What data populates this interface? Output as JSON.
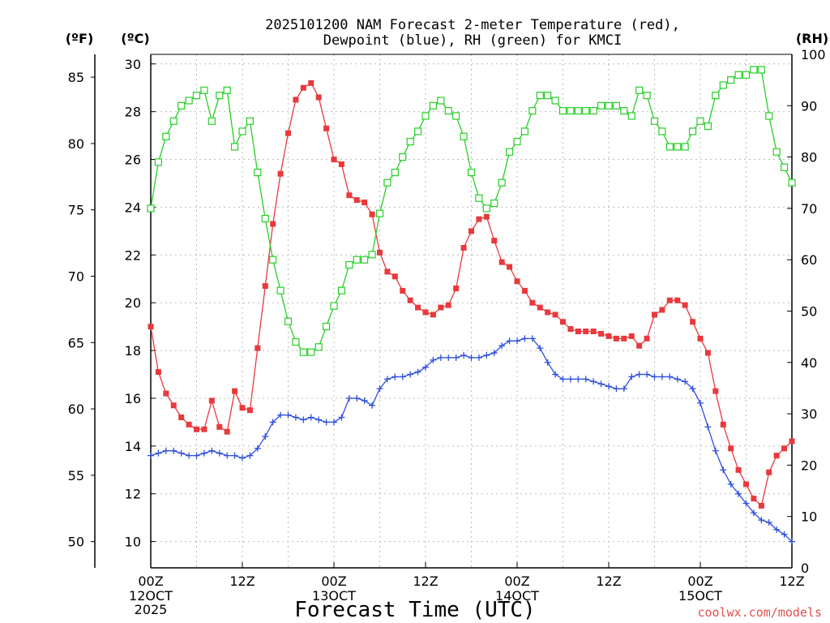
{
  "chart_data": {
    "type": "line",
    "title_line1": "2025101200 NAM Forecast 2-meter Temperature (red),",
    "title_line2": "Dewpoint (blue), RH (green) for KMCI",
    "xlabel": "Forecast Time (UTC)",
    "credit": "coolwx.com/models",
    "y_left_f_label": "(ºF)",
    "y_left_c_label": "(ºC)",
    "y_right_label": "(RH)",
    "x_tick_labels": [
      {
        "hour": 0,
        "line1": "00Z",
        "line2": "12OCT",
        "line3": "2025"
      },
      {
        "hour": 12,
        "line1": "12Z",
        "line2": "",
        "line3": ""
      },
      {
        "hour": 24,
        "line1": "00Z",
        "line2": "13OCT",
        "line3": ""
      },
      {
        "hour": 36,
        "line1": "12Z",
        "line2": "",
        "line3": ""
      },
      {
        "hour": 48,
        "line1": "00Z",
        "line2": "14OCT",
        "line3": ""
      },
      {
        "hour": 60,
        "line1": "12Z",
        "line2": "",
        "line3": ""
      },
      {
        "hour": 72,
        "line1": "00Z",
        "line2": "15OCT",
        "line3": ""
      },
      {
        "hour": 84,
        "line1": "12Z",
        "line2": "",
        "line3": ""
      }
    ],
    "x_range_hours": [
      0,
      84
    ],
    "y_c_range": [
      8.9,
      30.4
    ],
    "y_c_ticks": [
      "10",
      "12",
      "14",
      "16",
      "18",
      "20",
      "22",
      "24",
      "26",
      "28",
      "30"
    ],
    "y_f_ticks": [
      "50",
      "55",
      "60",
      "65",
      "70",
      "75",
      "80",
      "85"
    ],
    "y_rh_range": [
      0,
      100
    ],
    "y_rh_ticks": [
      "0",
      "10",
      "20",
      "30",
      "40",
      "50",
      "60",
      "70",
      "80",
      "90",
      "100"
    ],
    "grid": true,
    "colors": {
      "temperature": "#e8393d",
      "dewpoint": "#2f4fdc",
      "rh": "#26cf26",
      "credit": "#e05050",
      "grid": "#bbbbbb"
    },
    "x_hours": [
      0,
      1,
      2,
      3,
      4,
      5,
      6,
      7,
      8,
      9,
      10,
      11,
      12,
      13,
      14,
      15,
      16,
      17,
      18,
      19,
      20,
      21,
      22,
      23,
      24,
      25,
      26,
      27,
      28,
      29,
      30,
      31,
      32,
      33,
      34,
      35,
      36,
      37,
      38,
      39,
      40,
      41,
      42,
      43,
      44,
      45,
      46,
      47,
      48,
      49,
      50,
      51,
      52,
      53,
      54,
      55,
      56,
      57,
      58,
      59,
      60,
      61,
      62,
      63,
      64,
      65,
      66,
      67,
      68,
      69,
      70,
      71,
      72,
      73,
      74,
      75,
      76,
      77,
      78,
      79,
      80,
      81,
      82,
      83,
      84
    ],
    "series": [
      {
        "key": "temperature",
        "unit": "C",
        "marker": "filled-square",
        "values": [
          19.0,
          17.1,
          16.2,
          15.7,
          15.2,
          14.9,
          14.7,
          14.7,
          15.9,
          14.8,
          14.6,
          16.3,
          15.6,
          15.5,
          18.1,
          20.7,
          23.3,
          25.4,
          27.1,
          28.5,
          29.0,
          29.2,
          28.6,
          27.3,
          26.0,
          25.8,
          24.5,
          24.3,
          24.2,
          23.7,
          22.1,
          21.3,
          21.1,
          20.5,
          20.1,
          19.8,
          19.6,
          19.5,
          19.8,
          19.9,
          20.6,
          22.3,
          23.0,
          23.5,
          23.6,
          22.6,
          21.7,
          21.5,
          20.9,
          20.5,
          20.0,
          19.8,
          19.6,
          19.5,
          19.2,
          18.9,
          18.8,
          18.8,
          18.8,
          18.7,
          18.6,
          18.5,
          18.5,
          18.6,
          18.2,
          18.5,
          19.5,
          19.7,
          20.1,
          20.1,
          19.9,
          19.2,
          18.5,
          17.9,
          16.3,
          14.9,
          13.9,
          13.0,
          12.4,
          11.8,
          11.5,
          12.9,
          13.6,
          13.9,
          14.2
        ]
      },
      {
        "key": "dewpoint",
        "unit": "C",
        "marker": "plus",
        "values": [
          13.6,
          13.7,
          13.8,
          13.8,
          13.7,
          13.6,
          13.6,
          13.7,
          13.8,
          13.7,
          13.6,
          13.6,
          13.5,
          13.6,
          13.9,
          14.4,
          15.0,
          15.3,
          15.3,
          15.2,
          15.1,
          15.2,
          15.1,
          15.0,
          15.0,
          15.2,
          16.0,
          16.0,
          15.9,
          15.7,
          16.4,
          16.8,
          16.9,
          16.9,
          17.0,
          17.1,
          17.3,
          17.6,
          17.7,
          17.7,
          17.7,
          17.8,
          17.7,
          17.7,
          17.8,
          17.9,
          18.2,
          18.4,
          18.4,
          18.5,
          18.5,
          18.1,
          17.5,
          17.0,
          16.8,
          16.8,
          16.8,
          16.8,
          16.7,
          16.6,
          16.5,
          16.4,
          16.4,
          16.9,
          17.0,
          17.0,
          16.9,
          16.9,
          16.9,
          16.8,
          16.7,
          16.4,
          15.8,
          14.8,
          13.8,
          13.0,
          12.4,
          12.0,
          11.6,
          11.2,
          10.9,
          10.8,
          10.5,
          10.3,
          10.0
        ]
      },
      {
        "key": "rh",
        "unit": "%",
        "marker": "open-square",
        "values": [
          70,
          79,
          84,
          87,
          90,
          91,
          92,
          93,
          87,
          92,
          93,
          82,
          85,
          87,
          77,
          68,
          60,
          54,
          48,
          44,
          42,
          42,
          43,
          47,
          51,
          54,
          59,
          60,
          60,
          61,
          69,
          75,
          77,
          80,
          83,
          85,
          88,
          90,
          91,
          89,
          88,
          84,
          77,
          72,
          70,
          71,
          75,
          81,
          83,
          85,
          89,
          92,
          92,
          91,
          89,
          89,
          89,
          89,
          89,
          90,
          90,
          90,
          89,
          88,
          93,
          92,
          87,
          85,
          82,
          82,
          82,
          85,
          87,
          86,
          92,
          94,
          95,
          96,
          96,
          97,
          97,
          88,
          81,
          78,
          75
        ]
      }
    ]
  }
}
